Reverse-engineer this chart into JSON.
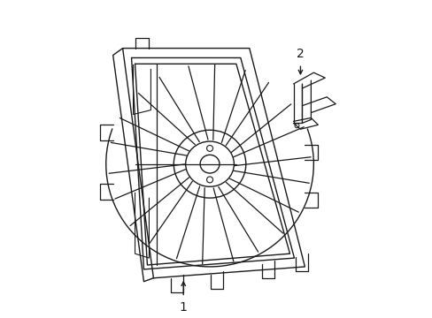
{
  "bg_color": "#ffffff",
  "line_color": "#1a1a1a",
  "line_width": 1.0,
  "fig_width": 4.89,
  "fig_height": 3.6,
  "dpi": 100,
  "label1": "1",
  "label2": "2"
}
